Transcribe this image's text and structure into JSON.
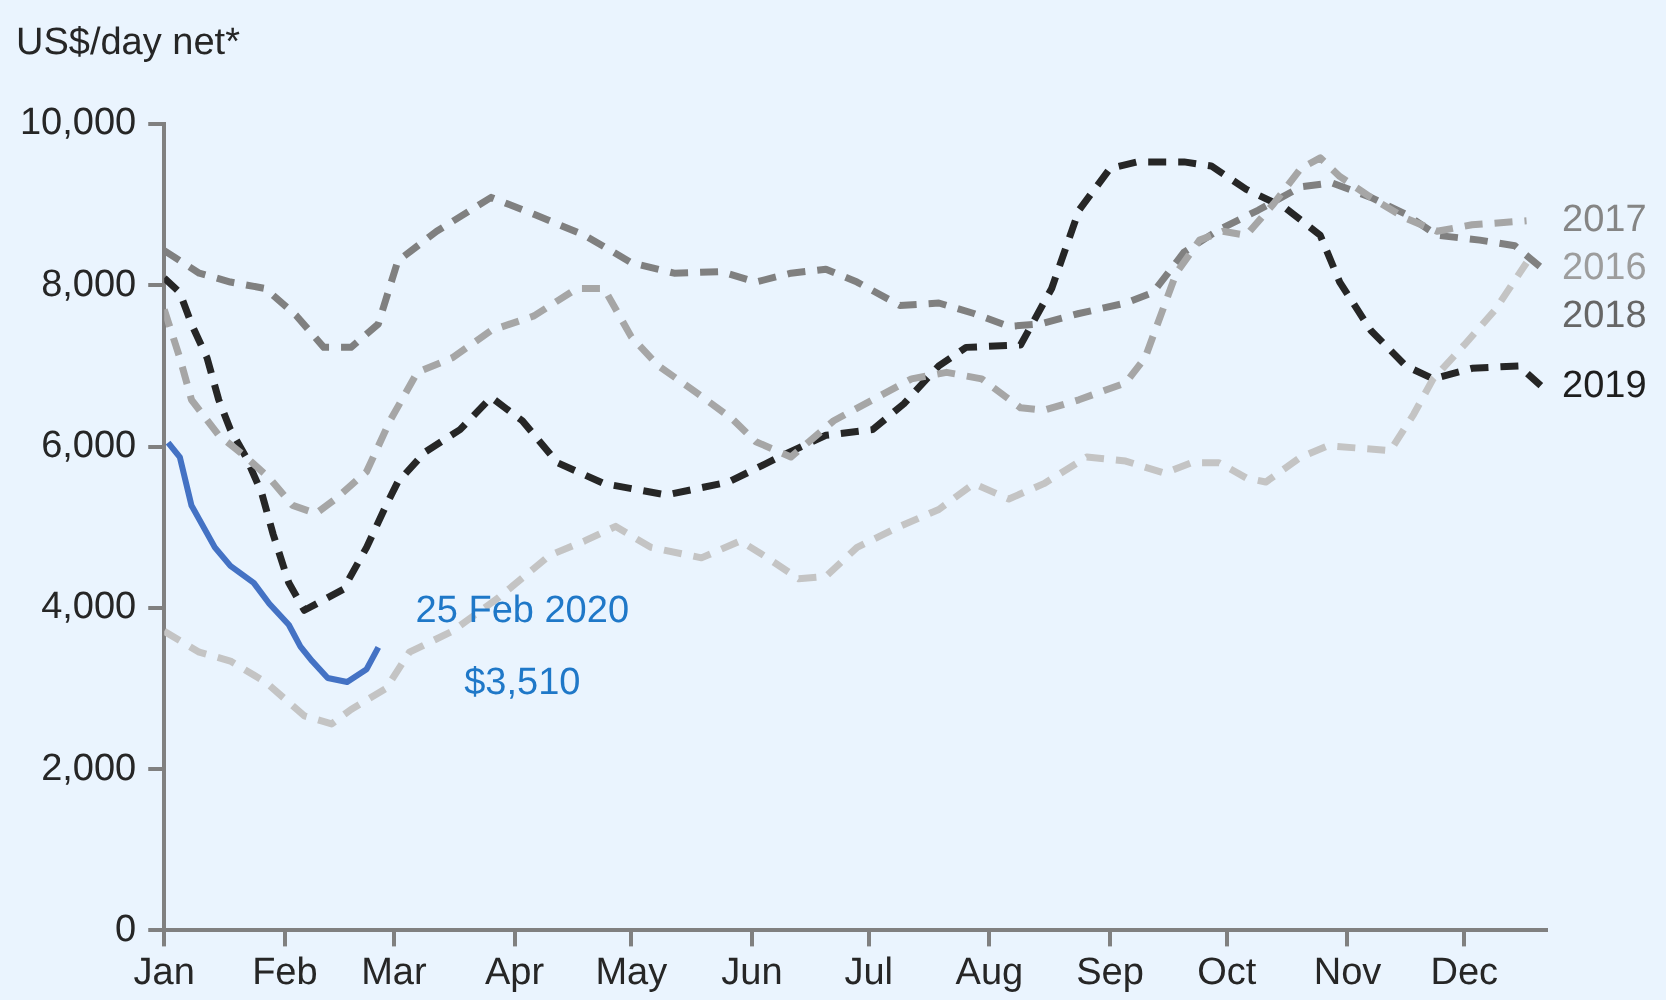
{
  "chart_data": {
    "type": "line",
    "ylabel": "US$/day net*",
    "xlim": [
      "--01-01",
      "--12-22"
    ],
    "xticks": [
      {
        "value": "--01-01",
        "label": "Jan"
      },
      {
        "value": "--02-01",
        "label": "Feb"
      },
      {
        "value": "--03-01",
        "label": "Mar"
      },
      {
        "value": "--04-01",
        "label": "Apr"
      },
      {
        "value": "--05-01",
        "label": "May"
      },
      {
        "value": "--06-01",
        "label": "Jun"
      },
      {
        "value": "--07-01",
        "label": "Jul"
      },
      {
        "value": "--08-01",
        "label": "Aug"
      },
      {
        "value": "--09-01",
        "label": "Sep"
      },
      {
        "value": "--10-01",
        "label": "Oct"
      },
      {
        "value": "--11-01",
        "label": "Nov"
      },
      {
        "value": "--12-01",
        "label": "Dec"
      }
    ],
    "ylim": [
      0,
      10000
    ],
    "yticks": [
      0,
      {
        "value": 2000,
        "label": "2,000"
      },
      {
        "value": 4000,
        "label": "4,000"
      },
      {
        "value": 6000,
        "label": "6,000"
      },
      {
        "value": 8000,
        "label": "8,000"
      },
      {
        "value": 10000,
        "label": "10,000"
      }
    ],
    "grid": false,
    "legend": false,
    "marker": "none",
    "annotations": [
      {
        "text": "25 Feb 2020\n$3,510",
        "x": "--02-25",
        "y": 3510
      }
    ],
    "series": [
      {
        "name": "2016",
        "color": "#c4c4c4",
        "line_style": "dashed",
        "x": [
          "--01-01",
          "--01-10",
          "--01-18",
          "--01-27",
          "--02-06",
          "--02-13",
          "--02-18",
          "--02-27",
          "--03-05",
          "--03-16",
          "--03-28",
          "--04-10",
          "--04-19",
          "--04-27",
          "--05-06",
          "--05-19",
          "--05-29",
          "--06-04",
          "--06-13",
          "--06-20",
          "--06-28",
          "--07-09",
          "--07-19",
          "--07-28",
          "--08-06",
          "--08-15",
          "--08-26",
          "--09-05",
          "--09-15",
          "--09-22",
          "--09-29",
          "--10-06",
          "--10-11",
          "--10-20",
          "--10-27",
          "--11-12",
          "--11-18",
          "--11-23",
          "--12-01",
          "--12-09",
          "--12-17"
        ],
        "values": [
          3710,
          3450,
          3340,
          3080,
          2660,
          2560,
          2740,
          3000,
          3450,
          3710,
          4130,
          4650,
          4830,
          5010,
          4750,
          4620,
          4830,
          4650,
          4360,
          4390,
          4750,
          5010,
          5220,
          5540,
          5350,
          5540,
          5870,
          5820,
          5670,
          5800,
          5800,
          5610,
          5560,
          5870,
          6010,
          5950,
          6400,
          6840,
          7260,
          7700,
          8280
        ]
      },
      {
        "name": "2017",
        "color": "#a6a6a6",
        "line_style": "dashed",
        "x": [
          "--01-01",
          "--01-05",
          "--01-08",
          "--01-15",
          "--01-22",
          "--01-28",
          "--02-03",
          "--02-09",
          "--02-14",
          "--02-22",
          "--02-28",
          "--03-07",
          "--03-16",
          "--03-26",
          "--04-06",
          "--04-17",
          "--04-24",
          "--05-01",
          "--05-08",
          "--05-18",
          "--05-27",
          "--06-02",
          "--06-11",
          "--06-22",
          "--07-02",
          "--07-12",
          "--07-21",
          "--07-30",
          "--08-09",
          "--08-15",
          "--08-24",
          "--09-05",
          "--09-10",
          "--09-18",
          "--09-24",
          "--09-30",
          "--10-06",
          "--10-13",
          "--10-20",
          "--10-25",
          "--10-30",
          "--11-07",
          "--11-16",
          "--11-24",
          "--12-03",
          "--12-17"
        ],
        "values": [
          7700,
          7100,
          6580,
          6140,
          5870,
          5610,
          5270,
          5170,
          5350,
          5690,
          6320,
          6920,
          7100,
          7440,
          7620,
          7960,
          7960,
          7360,
          7000,
          6660,
          6340,
          6060,
          5870,
          6320,
          6580,
          6840,
          6920,
          6840,
          6480,
          6450,
          6580,
          6790,
          7100,
          8150,
          8560,
          8670,
          8620,
          9010,
          9450,
          9580,
          9350,
          9090,
          8830,
          8670,
          8750,
          8800
        ]
      },
      {
        "name": "2018",
        "color": "#808080",
        "line_style": "dashed",
        "x": [
          "--01-01",
          "--01-10",
          "--01-18",
          "--01-27",
          "--02-04",
          "--02-11",
          "--02-18",
          "--02-25",
          "--03-02",
          "--03-12",
          "--03-26",
          "--04-06",
          "--04-19",
          "--05-01",
          "--05-12",
          "--05-24",
          "--06-02",
          "--06-11",
          "--06-20",
          "--06-28",
          "--07-09",
          "--07-19",
          "--07-28",
          "--08-06",
          "--08-14",
          "--08-24",
          "--09-05",
          "--09-12",
          "--09-20",
          "--09-29",
          "--10-09",
          "--10-20",
          "--10-28",
          "--11-07",
          "--11-16",
          "--11-24",
          "--12-05",
          "--12-14",
          "--12-22"
        ],
        "values": [
          8430,
          8150,
          8040,
          7960,
          7620,
          7230,
          7230,
          7520,
          8300,
          8670,
          9090,
          8880,
          8620,
          8280,
          8150,
          8170,
          8040,
          8150,
          8200,
          8040,
          7750,
          7780,
          7650,
          7490,
          7520,
          7650,
          7780,
          7910,
          8410,
          8690,
          8930,
          9220,
          9270,
          9090,
          8880,
          8620,
          8560,
          8490,
          8170
        ]
      },
      {
        "name": "2019",
        "color": "#262626",
        "line_style": "dashed",
        "x": [
          "--01-01",
          "--01-05",
          "--01-08",
          "--01-12",
          "--01-15",
          "--01-18",
          "--01-22",
          "--01-26",
          "--01-29",
          "--02-02",
          "--02-06",
          "--02-11",
          "--02-16",
          "--02-22",
          "--02-27",
          "--03-02",
          "--03-09",
          "--03-18",
          "--03-26",
          "--04-03",
          "--04-12",
          "--04-24",
          "--05-10",
          "--05-26",
          "--06-08",
          "--06-20",
          "--07-02",
          "--07-10",
          "--07-19",
          "--07-26",
          "--08-09",
          "--08-17",
          "--08-24",
          "--09-01",
          "--09-08",
          "--09-20",
          "--09-27",
          "--10-06",
          "--10-16",
          "--10-25",
          "--10-30",
          "--11-07",
          "--11-16",
          "--11-23",
          "--12-03",
          "--12-15",
          "--12-21"
        ],
        "values": [
          8090,
          7910,
          7520,
          7100,
          6580,
          6210,
          5870,
          5430,
          4910,
          4310,
          3970,
          4100,
          4230,
          4750,
          5270,
          5560,
          5930,
          6210,
          6610,
          6320,
          5800,
          5540,
          5400,
          5560,
          5870,
          6140,
          6210,
          6530,
          7000,
          7230,
          7260,
          7960,
          8930,
          9450,
          9530,
          9530,
          9480,
          9190,
          8960,
          8620,
          8040,
          7440,
          7000,
          6840,
          6970,
          7000,
          6740
        ]
      },
      {
        "color": "#4472c4",
        "line_style": "solid",
        "x": [
          "--01-02",
          "--01-05",
          "--01-08",
          "--01-14",
          "--01-18",
          "--01-24",
          "--01-28",
          "--02-02",
          "--02-05",
          "--02-08",
          "--02-12",
          "--02-17",
          "--02-22",
          "--02-25"
        ],
        "values": [
          6050,
          5870,
          5270,
          4750,
          4520,
          4310,
          4050,
          3790,
          3520,
          3340,
          3130,
          3080,
          3240,
          3510
        ]
      }
    ]
  }
}
